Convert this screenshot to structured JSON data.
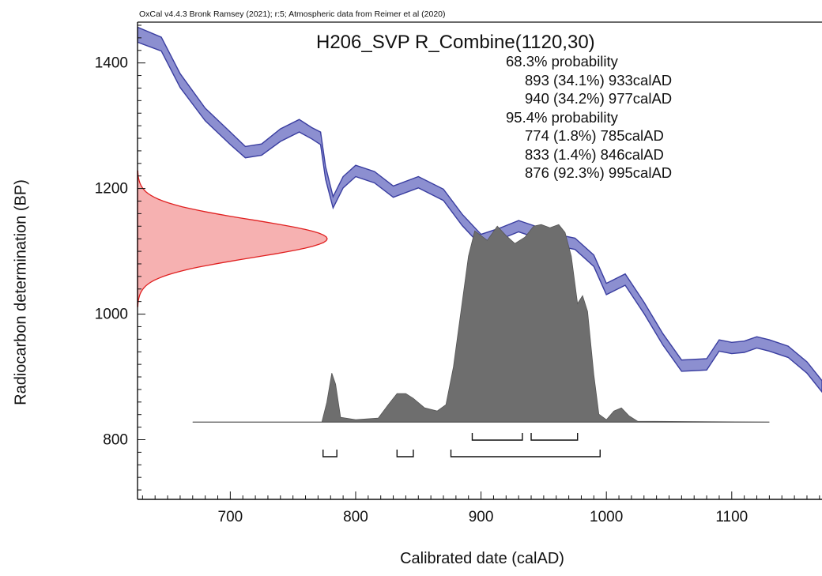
{
  "chart_data": {
    "type": "area",
    "credit": "OxCal v4.4.3 Bronk Ramsey (2021); r:5; Atmospheric data from Reimer et al (2020)",
    "title": "H206_SVP R_Combine(1120,30)",
    "xlabel": "Calibrated date (calAD)",
    "ylabel": "Radiocarbon determination (BP)",
    "xlim": [
      626,
      1172
    ],
    "ylim": [
      705,
      1465
    ],
    "x_ticks": [
      700,
      800,
      900,
      1000,
      1100
    ],
    "y_ticks": [
      800,
      1000,
      1200,
      1400
    ],
    "x_ticks_labels": [
      "700",
      "800",
      "900",
      "1000",
      "1100"
    ],
    "y_ticks_labels": [
      "800",
      "1000",
      "1200",
      "1400"
    ],
    "colors": {
      "calibration_curve_fill": "#8c8fd0",
      "calibration_curve_edge": "#3a3ea0",
      "measurement_fill": "#f4a3a3",
      "measurement_edge": "#e02020",
      "posterior_fill": "#6e6e6e"
    },
    "calibration_curve": {
      "x": [
        626,
        645,
        660,
        680,
        700,
        712,
        725,
        740,
        755,
        765,
        772,
        776,
        782,
        790,
        800,
        815,
        830,
        850,
        870,
        885,
        900,
        915,
        930,
        945,
        960,
        975,
        990,
        1000,
        1015,
        1030,
        1045,
        1060,
        1080,
        1090,
        1100,
        1110,
        1120,
        1130,
        1145,
        1160,
        1172
      ],
      "y": [
        1445,
        1430,
        1372,
        1318,
        1280,
        1258,
        1262,
        1285,
        1300,
        1288,
        1280,
        1225,
        1178,
        1210,
        1228,
        1218,
        1195,
        1210,
        1190,
        1150,
        1118,
        1128,
        1140,
        1130,
        1118,
        1112,
        1085,
        1040,
        1055,
        1010,
        960,
        918,
        920,
        950,
        946,
        948,
        955,
        950,
        940,
        915,
        885
      ],
      "err": [
        12,
        11,
        11,
        10,
        10,
        9,
        9,
        10,
        10,
        9,
        10,
        10,
        9,
        9,
        9,
        9,
        9,
        9,
        9,
        9,
        9,
        9,
        9,
        9,
        9,
        9,
        9,
        9,
        9,
        9,
        9,
        9,
        9,
        9,
        9,
        9,
        9,
        9,
        9,
        9,
        9
      ]
    },
    "measurement": {
      "mean_bp": 1120,
      "sd_bp": 30
    },
    "posterior": {
      "baseline_bp": 828,
      "x": [
        670,
        773,
        777,
        781,
        784,
        788,
        800,
        818,
        826,
        833,
        840,
        846,
        855,
        865,
        872,
        878,
        884,
        890,
        895,
        905,
        913,
        920,
        927,
        935,
        942,
        948,
        955,
        962,
        967,
        972,
        977,
        981,
        985,
        990,
        994,
        1000,
        1006,
        1012,
        1018,
        1025,
        1130
      ],
      "y": [
        0,
        0,
        25,
        62,
        48,
        6,
        3,
        5,
        22,
        36,
        36,
        30,
        18,
        14,
        22,
        70,
        140,
        210,
        242,
        230,
        248,
        236,
        226,
        234,
        248,
        250,
        246,
        250,
        240,
        210,
        150,
        160,
        140,
        60,
        10,
        3,
        14,
        18,
        8,
        1,
        0
      ]
    },
    "ranges_68": [
      {
        "from": 893,
        "to": 933,
        "label": "893 (34.1%) 933calAD"
      },
      {
        "from": 940,
        "to": 977,
        "label": "940 (34.2%) 977calAD"
      }
    ],
    "ranges_95": [
      {
        "from": 774,
        "to": 785,
        "label": "774 (1.8%) 785calAD"
      },
      {
        "from": 833,
        "to": 846,
        "label": "833 (1.4%) 846calAD"
      },
      {
        "from": 876,
        "to": 995,
        "label": "876 (92.3%) 995calAD"
      }
    ],
    "ranges_68_header": "68.3% probability",
    "ranges_95_header": "95.4% probability"
  }
}
